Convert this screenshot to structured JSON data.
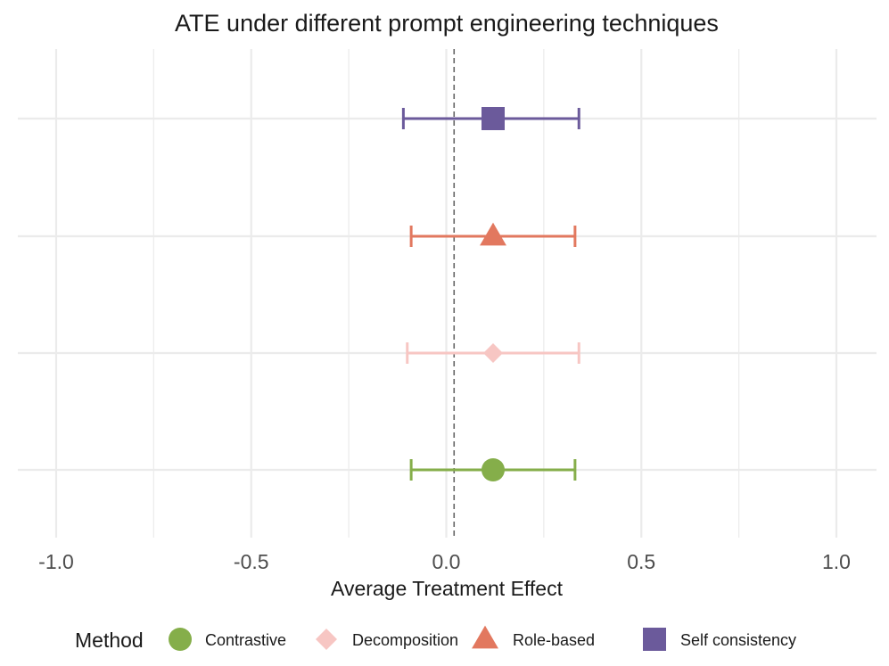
{
  "chart_data": {
    "type": "scatter",
    "title": "ATE under different prompt engineering techniques",
    "xlabel": "Average Treatment Effect",
    "ylabel": "",
    "xlim": [
      -1.1,
      1.1
    ],
    "x_ticks": [
      -1.0,
      -0.5,
      0.0,
      0.5,
      1.0
    ],
    "x_tick_labels": [
      "-1.0",
      "-0.5",
      "0.0",
      "0.5",
      "1.0"
    ],
    "reference_line": 0.02,
    "grid": true,
    "legend": {
      "title": "Method",
      "position": "bottom",
      "items": [
        {
          "label": "Contrastive",
          "shape": "circle",
          "color": "#85AE4A"
        },
        {
          "label": "Decomposition",
          "shape": "diamond",
          "color": "#F7C6C3"
        },
        {
          "label": "Role-based",
          "shape": "triangle",
          "color": "#E2785F"
        },
        {
          "label": "Self consistency",
          "shape": "square",
          "color": "#6B5A9B"
        }
      ]
    },
    "series": [
      {
        "name": "Contrastive",
        "estimate": 0.12,
        "ci_low": -0.09,
        "ci_high": 0.33
      },
      {
        "name": "Decomposition",
        "estimate": 0.12,
        "ci_low": -0.1,
        "ci_high": 0.34
      },
      {
        "name": "Role-based",
        "estimate": 0.12,
        "ci_low": -0.09,
        "ci_high": 0.33
      },
      {
        "name": "Self consistency",
        "estimate": 0.12,
        "ci_low": -0.11,
        "ci_high": 0.34
      }
    ]
  }
}
